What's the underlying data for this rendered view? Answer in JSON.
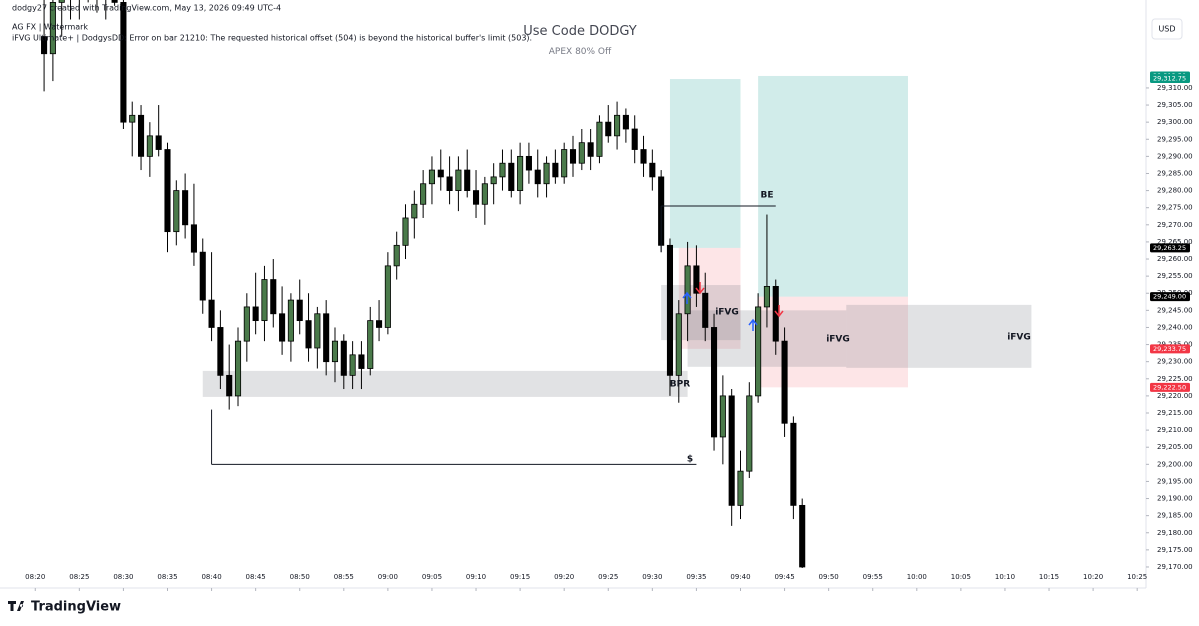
{
  "chart_data": {
    "type": "candlestick",
    "header": [
      "dodgy27 created with TradingView.com, May 13, 2026 09:49 UTC-4",
      "AG FX | Watermark",
      "iFVG Ultimate+ | DodgysDD: Error on bar 21210: The requested historical offset (504) is beyond the historical buffer's limit (503)."
    ],
    "title": "Use Code DODGY",
    "subtitle": "APEX 80% Off",
    "currency": "USD",
    "brand": "TradingView",
    "up_color": "#4a7a4a",
    "down_color": "#000000",
    "x": [
      "08:21",
      "08:22",
      "08:23",
      "08:24",
      "08:25",
      "08:26",
      "08:27",
      "08:28",
      "08:29",
      "08:30",
      "08:31",
      "08:32",
      "08:33",
      "08:34",
      "08:35",
      "08:36",
      "08:37",
      "08:38",
      "08:39",
      "08:40",
      "08:41",
      "08:42",
      "08:43",
      "08:44",
      "08:45",
      "08:46",
      "08:47",
      "08:48",
      "08:49",
      "08:50",
      "08:51",
      "08:52",
      "08:53",
      "08:54",
      "08:55",
      "08:56",
      "08:57",
      "08:58",
      "08:59",
      "09:00",
      "09:01",
      "09:02",
      "09:03",
      "09:04",
      "09:05",
      "09:06",
      "09:07",
      "09:08",
      "09:09",
      "09:10",
      "09:11",
      "09:12",
      "09:13",
      "09:14",
      "09:15",
      "09:16",
      "09:17",
      "09:18",
      "09:19",
      "09:20",
      "09:21",
      "09:22",
      "09:23",
      "09:24",
      "09:25",
      "09:26",
      "09:27",
      "09:28",
      "09:29",
      "09:30",
      "09:31",
      "09:32",
      "09:33",
      "09:34",
      "09:35",
      "09:36",
      "09:37",
      "09:38",
      "09:39",
      "09:40",
      "09:41",
      "09:42",
      "09:43",
      "09:44",
      "09:45",
      "09:46",
      "09:47"
    ],
    "open": [
      29325,
      29320,
      29335,
      29340,
      29338,
      29345,
      29340,
      29336,
      29344,
      29335,
      29300,
      29302,
      29290,
      29296,
      29292,
      29268,
      29280,
      29270,
      29262,
      29248,
      29240,
      29226,
      29220,
      29236,
      29246,
      29242,
      29254,
      29244,
      29236,
      29248,
      29242,
      29234,
      29244,
      29230,
      29236,
      29226,
      29232,
      29228,
      29242,
      29240,
      29258,
      29264,
      29272,
      29276,
      29282,
      29286,
      29284,
      29280,
      29286,
      29280,
      29276,
      29282,
      29284,
      29288,
      29280,
      29290,
      29286,
      29282,
      29288,
      29284,
      29292,
      29288,
      29294,
      29290,
      29300,
      29296,
      29302,
      29298,
      29292,
      29288,
      29284,
      29264,
      29226,
      29244,
      29258,
      29250,
      29240,
      29208,
      29220,
      29188,
      29198,
      29220,
      29246,
      29252,
      29236,
      29212,
      29188
    ],
    "high": [
      29345,
      29340,
      29350,
      29352,
      29350,
      29355,
      29350,
      29348,
      29350,
      29340,
      29306,
      29305,
      29300,
      29305,
      29294,
      29283,
      29285,
      29282,
      29266,
      29262,
      29245,
      29235,
      29240,
      29250,
      29256,
      29258,
      29260,
      29252,
      29250,
      29254,
      29250,
      29246,
      29248,
      29240,
      29238,
      29236,
      29236,
      29246,
      29248,
      29262,
      29268,
      29276,
      29280,
      29286,
      29290,
      29292,
      29290,
      29290,
      29292,
      29286,
      29284,
      29288,
      29292,
      29292,
      29294,
      29294,
      29292,
      29290,
      29292,
      29294,
      29296,
      29298,
      29298,
      29302,
      29305,
      29306,
      29304,
      29302,
      29296,
      29292,
      29286,
      29266,
      29248,
      29265,
      29264,
      29256,
      29244,
      29226,
      29222,
      29204,
      29224,
      29250,
      29273,
      29254,
      29240,
      29214,
      29190
    ],
    "low": [
      29309,
      29312,
      29325,
      29330,
      29330,
      29335,
      29332,
      29330,
      29334,
      29298,
      29290,
      29286,
      29284,
      29290,
      29262,
      29264,
      29266,
      29258,
      29244,
      29236,
      29222,
      29216,
      29217,
      29230,
      29238,
      29236,
      29240,
      29232,
      29230,
      29238,
      29230,
      29228,
      29226,
      29224,
      29222,
      29222,
      29222,
      29226,
      29236,
      29238,
      29254,
      29260,
      29266,
      29272,
      29276,
      29280,
      29276,
      29274,
      29278,
      29272,
      29270,
      29276,
      29280,
      29278,
      29276,
      29282,
      29278,
      29278,
      29282,
      29282,
      29284,
      29286,
      29286,
      29288,
      29294,
      29292,
      29294,
      29288,
      29284,
      29280,
      29262,
      29220,
      29218,
      29236,
      29246,
      29236,
      29204,
      29200,
      29182,
      29184,
      29196,
      29218,
      29240,
      29232,
      29208,
      29184,
      29165
    ],
    "close": [
      29320,
      29335,
      29340,
      29338,
      29345,
      29340,
      29336,
      29344,
      29335,
      29300,
      29302,
      29290,
      29296,
      29292,
      29268,
      29280,
      29270,
      29262,
      29248,
      29240,
      29226,
      29220,
      29236,
      29246,
      29242,
      29254,
      29244,
      29236,
      29248,
      29242,
      29234,
      29244,
      29230,
      29236,
      29226,
      29232,
      29228,
      29242,
      29240,
      29258,
      29264,
      29272,
      29276,
      29282,
      29286,
      29284,
      29280,
      29286,
      29280,
      29276,
      29282,
      29284,
      29288,
      29280,
      29290,
      29286,
      29282,
      29288,
      29284,
      29292,
      29288,
      29294,
      29290,
      29300,
      29296,
      29302,
      29298,
      29292,
      29288,
      29284,
      29264,
      29226,
      29244,
      29258,
      29250,
      29240,
      29208,
      29220,
      29188,
      29198,
      29220,
      29246,
      29252,
      29236,
      29212,
      29188,
      29170
    ],
    "xlim": [
      "08:16",
      "10:26"
    ],
    "xticks": [
      "08:20",
      "08:25",
      "08:30",
      "08:35",
      "08:40",
      "08:45",
      "08:50",
      "08:55",
      "09:00",
      "09:05",
      "09:10",
      "09:15",
      "09:20",
      "09:25",
      "09:30",
      "09:35",
      "09:40",
      "09:45",
      "09:50",
      "09:55",
      "10:00",
      "10:05",
      "10:10",
      "10:15",
      "10:20",
      "10:25"
    ],
    "ylim": [
      29169.7,
      29335.7
    ],
    "yticks": [
      {
        "value": 29170,
        "label": "29,170.00"
      },
      {
        "value": 29175,
        "label": "29,175.00"
      },
      {
        "value": 29180,
        "label": "29,180.00"
      },
      {
        "value": 29185,
        "label": "29,185.00"
      },
      {
        "value": 29190,
        "label": "29,190.00"
      },
      {
        "value": 29195,
        "label": "29,195.00"
      },
      {
        "value": 29200,
        "label": "29,200.00"
      },
      {
        "value": 29205,
        "label": "29,205.00"
      },
      {
        "value": 29210,
        "label": "29,210.00"
      },
      {
        "value": 29215,
        "label": "29,215.00"
      },
      {
        "value": 29220,
        "label": "29,220.00"
      },
      {
        "value": 29225,
        "label": "29,225.00"
      },
      {
        "value": 29230,
        "label": "29,230.00"
      },
      {
        "value": 29235,
        "label": "29,235.00"
      },
      {
        "value": 29240,
        "label": "29,240.00"
      },
      {
        "value": 29245,
        "label": "29,245.00"
      },
      {
        "value": 29250,
        "label": "29,250.00"
      },
      {
        "value": 29255,
        "label": "29,255.00"
      },
      {
        "value": 29260,
        "label": "29,260.00"
      },
      {
        "value": 29265,
        "label": "29,265.00"
      },
      {
        "value": 29270,
        "label": "29,270.00"
      },
      {
        "value": 29275,
        "label": "29,275.00"
      },
      {
        "value": 29280,
        "label": "29,280.00"
      },
      {
        "value": 29285,
        "label": "29,285.00"
      },
      {
        "value": 29290,
        "label": "29,290.00"
      },
      {
        "value": 29295,
        "label": "29,295.00"
      },
      {
        "value": 29300,
        "label": "29,300.00"
      },
      {
        "value": 29305,
        "label": "29,305.00"
      },
      {
        "value": 29310,
        "label": "29,310.00"
      }
    ],
    "price_labels": [
      {
        "value": 29313.5,
        "label": "29,313.50",
        "color": "#089981"
      },
      {
        "value": 29312.75,
        "label": "29,312.75",
        "color": "#089981"
      },
      {
        "value": 29263.25,
        "label": "29,263.25",
        "color": "#000000"
      },
      {
        "value": 29249,
        "label": "29,249.00",
        "color": "#000000"
      },
      {
        "value": 29233.75,
        "label": "29,233.75",
        "color": "#f23645"
      },
      {
        "value": 29222.5,
        "label": "29,222.50",
        "color": "#f23645"
      }
    ],
    "zones": [
      {
        "start": "09:32",
        "end": "09:40",
        "top": 29312.6,
        "bottom": 29263.25,
        "color": "rgba(0,150,136,0.18)"
      },
      {
        "start": "09:42",
        "end": "09:59",
        "top": 29313.5,
        "bottom": 29249,
        "color": "rgba(0,150,136,0.18)"
      },
      {
        "start": "09:33",
        "end": "09:40",
        "top": 29263.25,
        "bottom": 29233.75,
        "color": "rgba(242,54,69,0.13)"
      },
      {
        "start": "09:42",
        "end": "09:59",
        "top": 29249,
        "bottom": 29222.5,
        "color": "rgba(242,54,69,0.13)"
      },
      {
        "start": "08:39",
        "end": "09:34",
        "top": 29227.3,
        "bottom": 29219.7,
        "color": "rgba(120,123,134,0.22)"
      },
      {
        "start": "09:31",
        "end": "09:40",
        "top": 29252.4,
        "bottom": 29236.3,
        "color": "rgba(120,123,134,0.22)"
      },
      {
        "start": "09:34",
        "end": "09:52",
        "top": 29245,
        "bottom": 29228.5,
        "color": "rgba(120,123,134,0.22)"
      },
      {
        "start": "09:52",
        "end": "10:13",
        "top": 29246.6,
        "bottom": 29228.2,
        "color": "rgba(120,123,134,0.22)"
      }
    ],
    "levels": [
      {
        "start": "09:31",
        "end": "09:44",
        "price": 29275.5,
        "from": 29262
      },
      {
        "start": "08:40",
        "end": "09:35",
        "price": 29200,
        "from": 29216
      }
    ],
    "annotations": [
      "BE",
      "iFVG",
      "iFVG",
      "iFVG",
      "BPR",
      "$"
    ]
  }
}
